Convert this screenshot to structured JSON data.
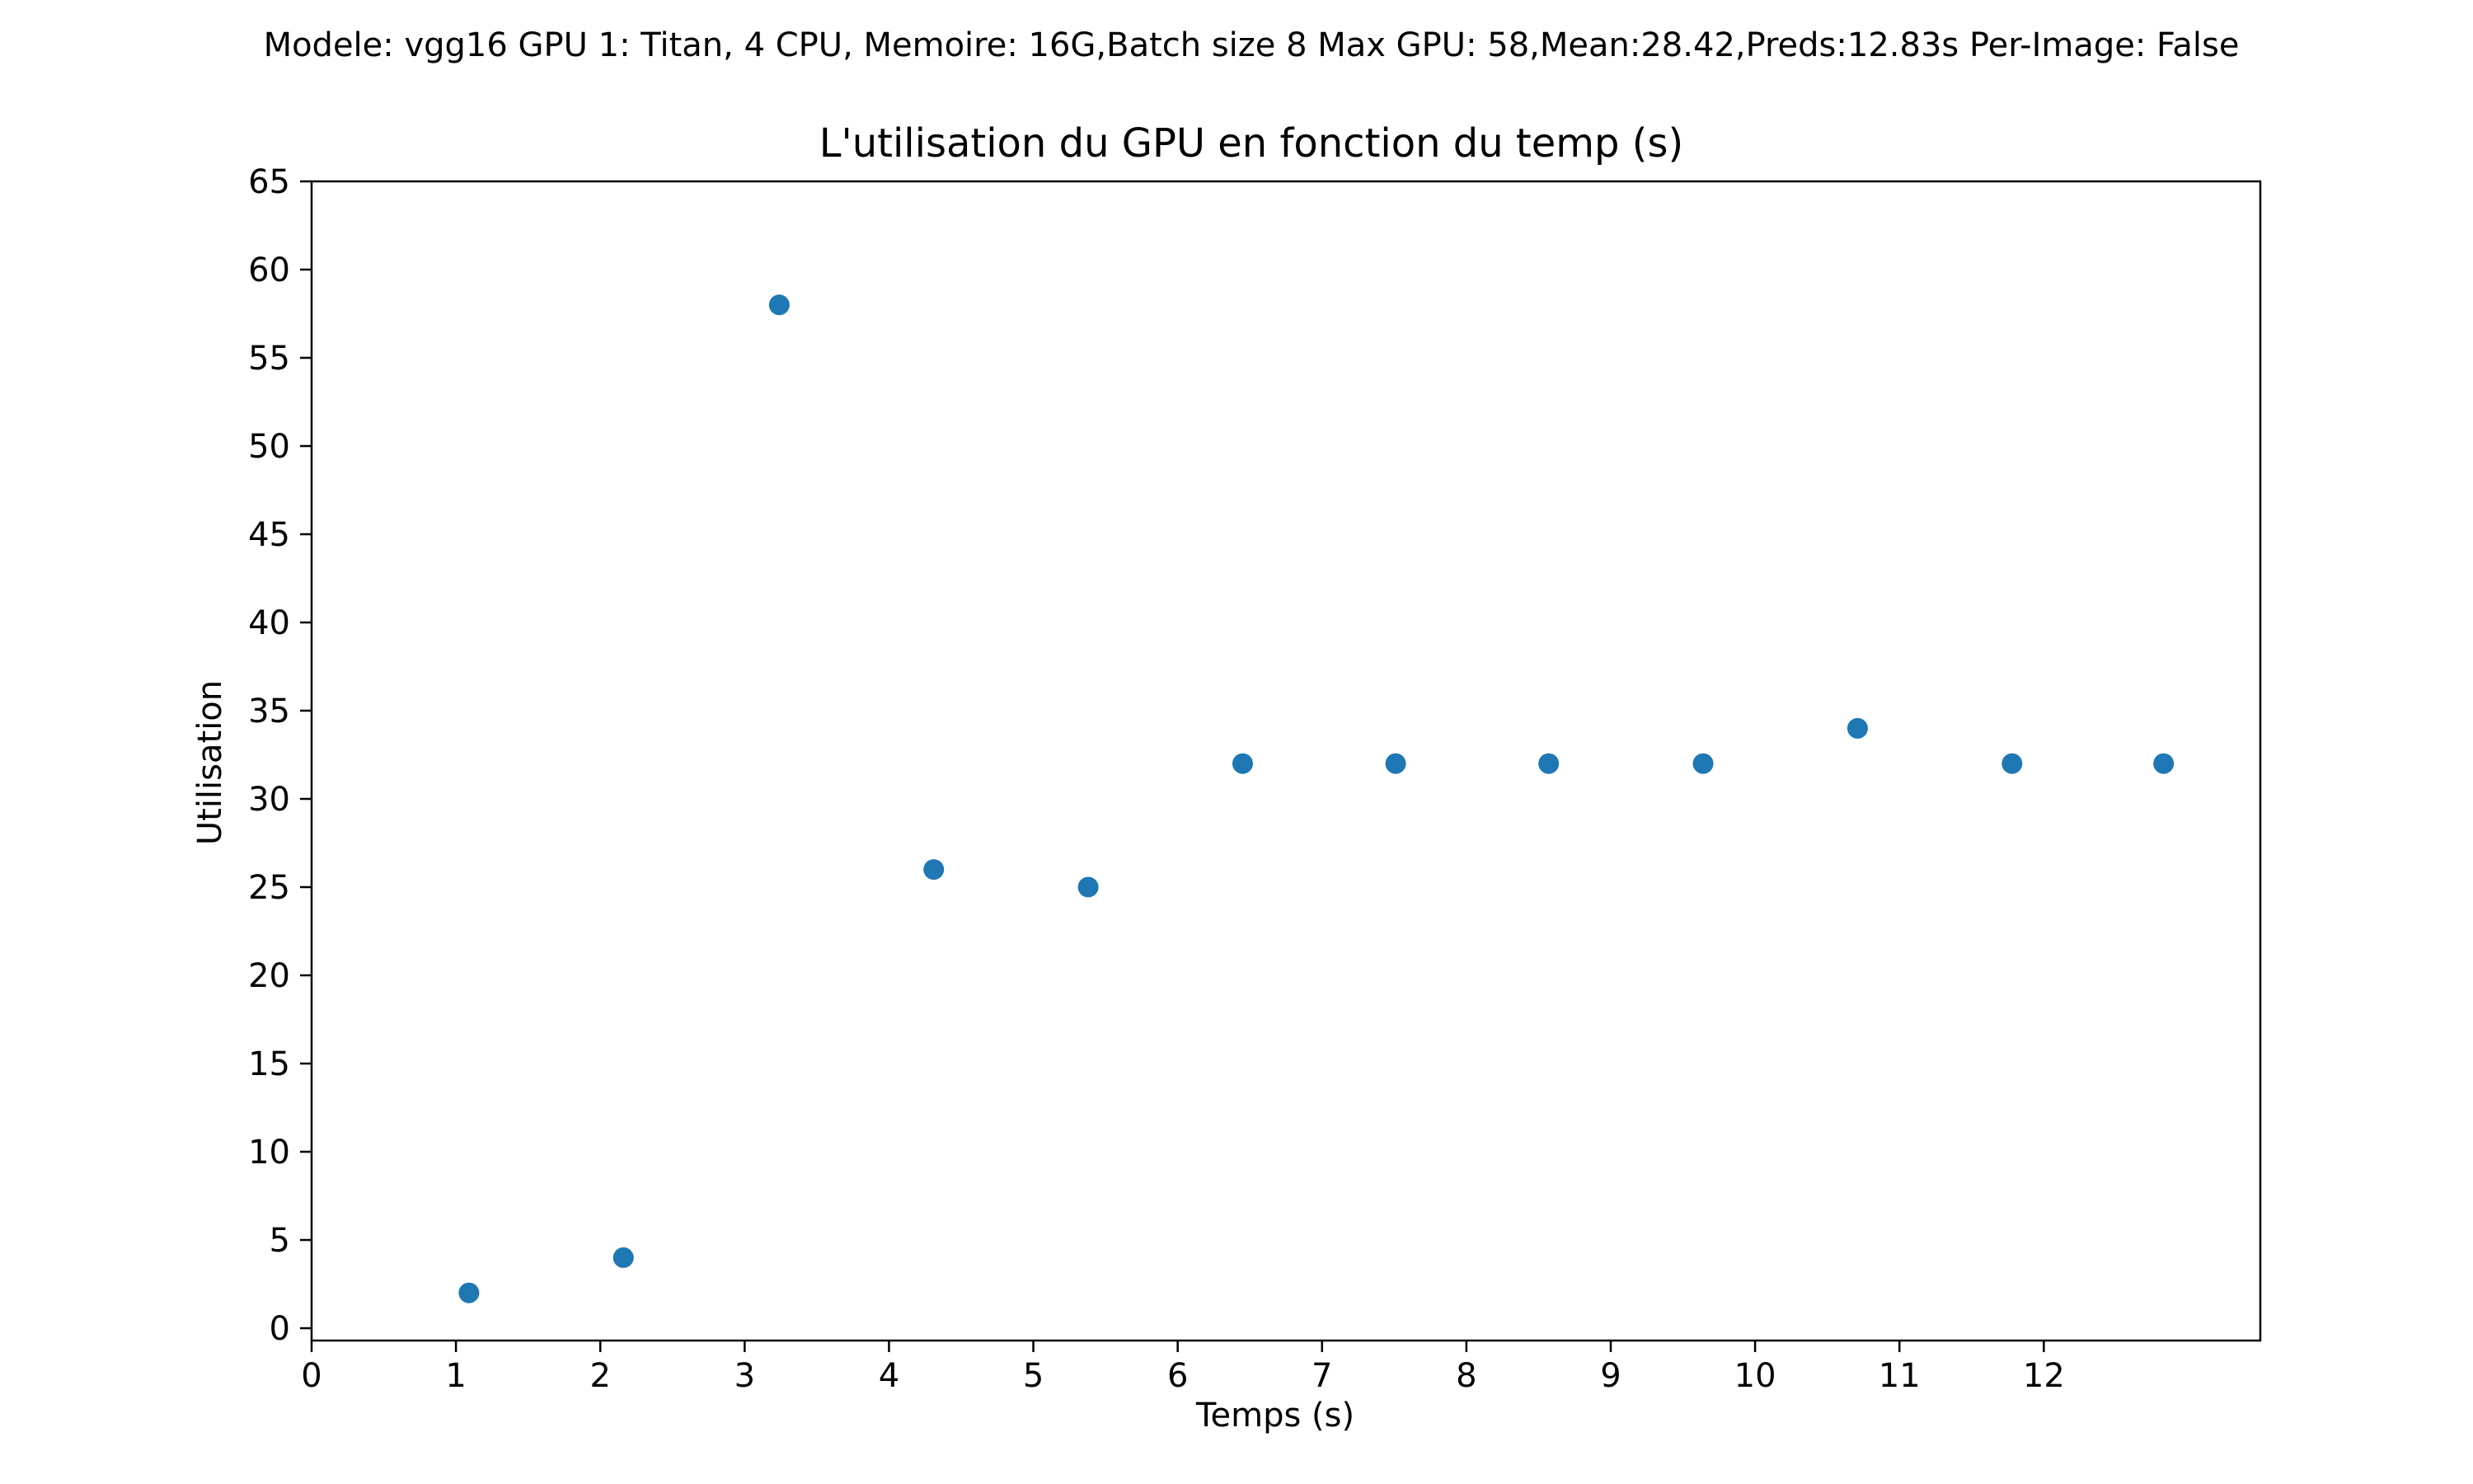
{
  "chart_data": {
    "type": "scatter",
    "suptitle": "Modele: vgg16 GPU 1: Titan, 4 CPU, Memoire: 16G,Batch size 8 Max GPU: 58,Mean:28.42,Preds:12.83s Per-Image: False",
    "title": "L'utilisation du GPU  en fonction du temp (s)",
    "xlabel": "Temps (s)",
    "ylabel": "Utilisation",
    "xlim": [
      0,
      13.5
    ],
    "ylim": [
      -0.7,
      65
    ],
    "x_ticks": [
      0,
      1,
      2,
      3,
      4,
      5,
      6,
      7,
      8,
      9,
      10,
      11,
      12
    ],
    "y_ticks": [
      0,
      5,
      10,
      15,
      20,
      25,
      30,
      35,
      40,
      45,
      50,
      55,
      60,
      65
    ],
    "grid": false,
    "marker_color": "#1f77b4",
    "x": [
      1.09,
      2.16,
      3.24,
      4.31,
      5.38,
      6.45,
      7.51,
      8.57,
      9.64,
      10.71,
      11.78,
      12.83
    ],
    "y": [
      2,
      4,
      58,
      26,
      25,
      32,
      32,
      32,
      32,
      34,
      32,
      32
    ]
  }
}
